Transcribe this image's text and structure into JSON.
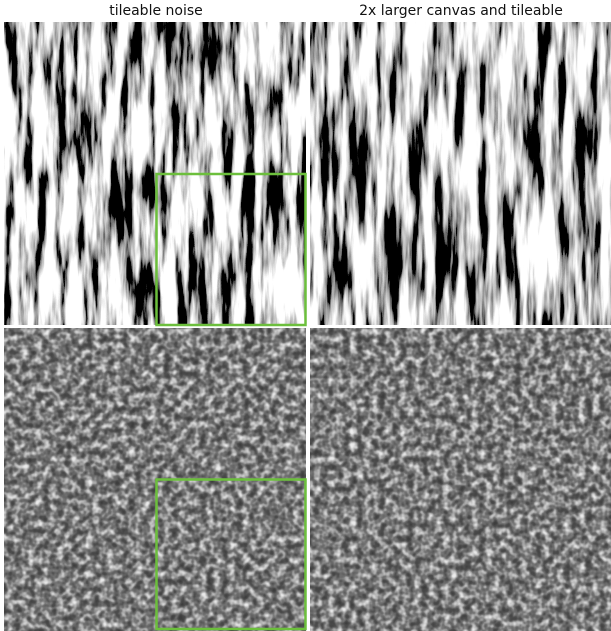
{
  "columns": [
    {
      "title": "tileable noise"
    },
    {
      "title": "2x larger canvas and tileable"
    }
  ]
}
